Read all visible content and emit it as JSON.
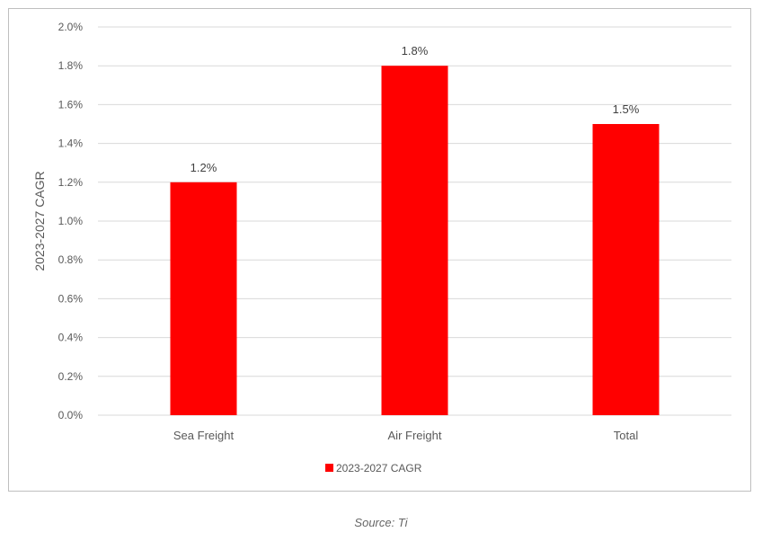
{
  "chart_data": {
    "type": "bar",
    "categories": [
      "Sea Freight",
      "Air Freight",
      "Total"
    ],
    "series": [
      {
        "name": "2023-2027 CAGR",
        "values": [
          1.2,
          1.8,
          1.5
        ],
        "data_labels": [
          "1.2%",
          "1.8%",
          "1.5%"
        ],
        "color": "#ff0000"
      }
    ],
    "ylabel": "2023-2027 CAGR",
    "xlabel": "",
    "ylim": [
      0,
      2.0
    ],
    "y_ticks": [
      {
        "value": 0.0,
        "label": "0.0%"
      },
      {
        "value": 0.2,
        "label": "0.2%"
      },
      {
        "value": 0.4,
        "label": "0.4%"
      },
      {
        "value": 0.6,
        "label": "0.6%"
      },
      {
        "value": 0.8,
        "label": "0.8%"
      },
      {
        "value": 1.0,
        "label": "1.0%"
      },
      {
        "value": 1.2,
        "label": "1.2%"
      },
      {
        "value": 1.4,
        "label": "1.4%"
      },
      {
        "value": 1.6,
        "label": "1.6%"
      },
      {
        "value": 1.8,
        "label": "1.8%"
      },
      {
        "value": 2.0,
        "label": "2.0%"
      }
    ],
    "grid": true,
    "gridline_color": "#d9d9d9",
    "legend_position": "bottom"
  },
  "caption": "Source: Ti"
}
